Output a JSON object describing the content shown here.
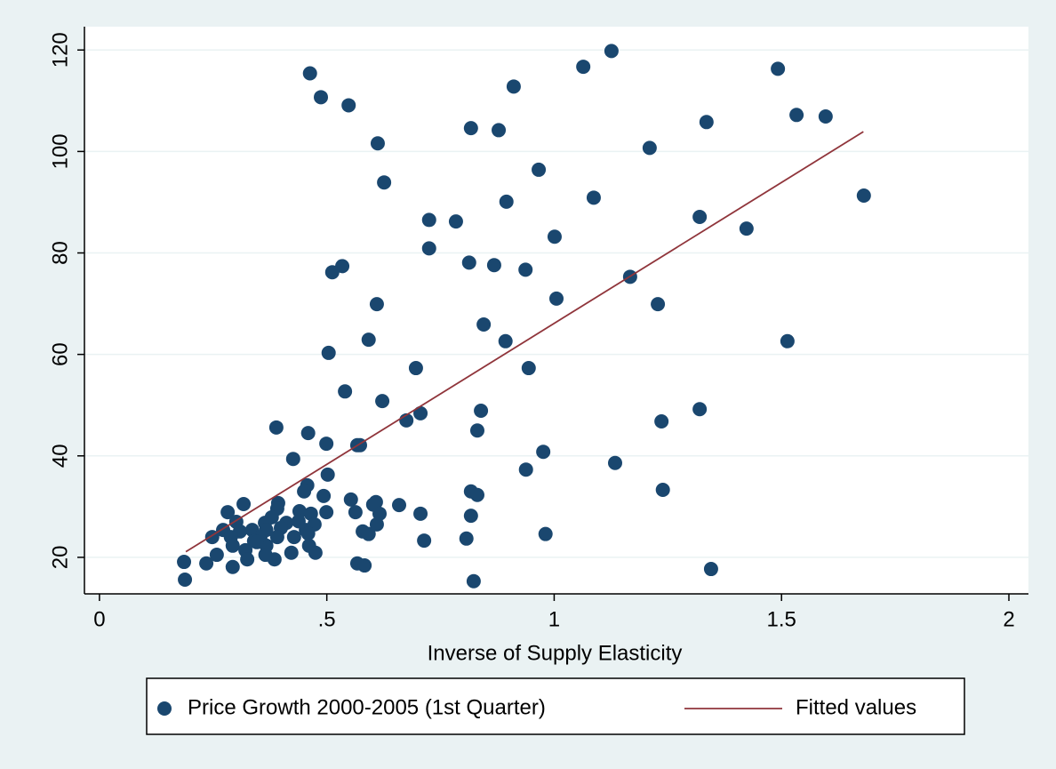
{
  "chart_data": {
    "type": "scatter",
    "xlabel": "Inverse of Supply Elasticity",
    "xlim": [
      -0.033,
      2.043
    ],
    "ylim": [
      12.8,
      124.6
    ],
    "xticks": [
      0,
      {
        "value": 0.5,
        "label": ".5"
      },
      1,
      1.5,
      2
    ],
    "yticks": [
      20,
      40,
      60,
      80,
      100,
      120
    ],
    "grid": true,
    "legend": "bottom",
    "series": [
      {
        "name": "Price Growth 2000-2005 (1st Quarter)",
        "type": "scatter",
        "color": "#1a476f",
        "x": [
          0.463,
          1.126,
          1.064,
          1.492,
          0.911,
          0.487,
          0.548,
          1.533,
          1.597,
          1.335,
          0.817,
          0.878,
          0.612,
          1.21,
          0.966,
          0.626,
          1.681,
          1.087,
          0.895,
          0.725,
          0.784,
          1.32,
          1.423,
          1.001,
          0.725,
          0.813,
          0.868,
          0.534,
          0.937,
          0.512,
          1.167,
          1.005,
          0.61,
          1.228,
          0.845,
          0.592,
          0.893,
          1.513,
          0.504,
          0.696,
          0.944,
          0.54,
          0.622,
          0.839,
          1.32,
          0.706,
          0.675,
          1.236,
          0.389,
          0.831,
          0.459,
          0.499,
          0.567,
          0.573,
          0.426,
          0.976,
          1.134,
          0.938,
          0.502,
          0.457,
          0.45,
          1.239,
          0.817,
          0.831,
          0.493,
          0.317,
          0.393,
          0.553,
          0.608,
          0.659,
          0.602,
          0.282,
          0.391,
          0.44,
          0.499,
          0.563,
          0.616,
          0.706,
          0.817,
          0.465,
          0.379,
          0.301,
          0.364,
          0.411,
          0.438,
          0.473,
          0.61,
          0.272,
          0.336,
          0.367,
          0.309,
          0.399,
          0.454,
          0.579,
          0.248,
          0.289,
          0.354,
          0.391,
          0.428,
          0.459,
          0.592,
          0.981,
          0.807,
          0.714,
          0.34,
          0.293,
          0.367,
          0.461,
          0.321,
          0.258,
          0.365,
          0.422,
          0.475,
          0.186,
          0.325,
          0.385,
          0.235,
          0.293,
          0.567,
          0.583,
          1.345,
          0.188,
          0.823,
          0.346
        ],
        "values": [
          115.4,
          119.8,
          116.7,
          116.3,
          112.8,
          110.7,
          109.1,
          107.2,
          106.9,
          105.8,
          104.6,
          104.2,
          101.6,
          100.7,
          96.4,
          93.9,
          91.3,
          90.9,
          90.1,
          86.5,
          86.2,
          87.1,
          84.8,
          83.2,
          80.9,
          78.1,
          77.6,
          77.4,
          76.7,
          76.2,
          75.3,
          71.0,
          69.9,
          69.9,
          65.9,
          62.9,
          62.6,
          62.6,
          60.3,
          57.3,
          57.3,
          52.7,
          50.8,
          48.9,
          49.2,
          48.4,
          47.0,
          46.8,
          45.6,
          45.0,
          44.5,
          42.4,
          42.1,
          42.1,
          39.4,
          40.8,
          38.6,
          37.3,
          36.3,
          34.2,
          33.0,
          33.3,
          33.0,
          32.3,
          32.1,
          30.5,
          30.7,
          31.4,
          30.9,
          30.3,
          30.4,
          28.9,
          29.6,
          29.1,
          28.9,
          28.9,
          28.6,
          28.6,
          28.2,
          28.6,
          27.9,
          27.0,
          26.8,
          26.8,
          27.1,
          26.5,
          26.5,
          25.4,
          25.4,
          25.4,
          25.1,
          25.8,
          25.4,
          25.1,
          24.0,
          24.0,
          24.0,
          24.0,
          24.0,
          24.7,
          24.6,
          24.6,
          23.7,
          23.3,
          23.2,
          22.3,
          22.3,
          22.3,
          21.4,
          20.5,
          20.5,
          20.9,
          20.9,
          19.1,
          19.6,
          19.6,
          18.8,
          18.1,
          18.8,
          18.4,
          17.7,
          15.6,
          15.3,
          23.0
        ]
      },
      {
        "name": "Fitted values",
        "type": "line",
        "color": "#90353b",
        "x": [
          0.19,
          1.68
        ],
        "values": [
          21.1,
          103.9
        ]
      }
    ]
  }
}
